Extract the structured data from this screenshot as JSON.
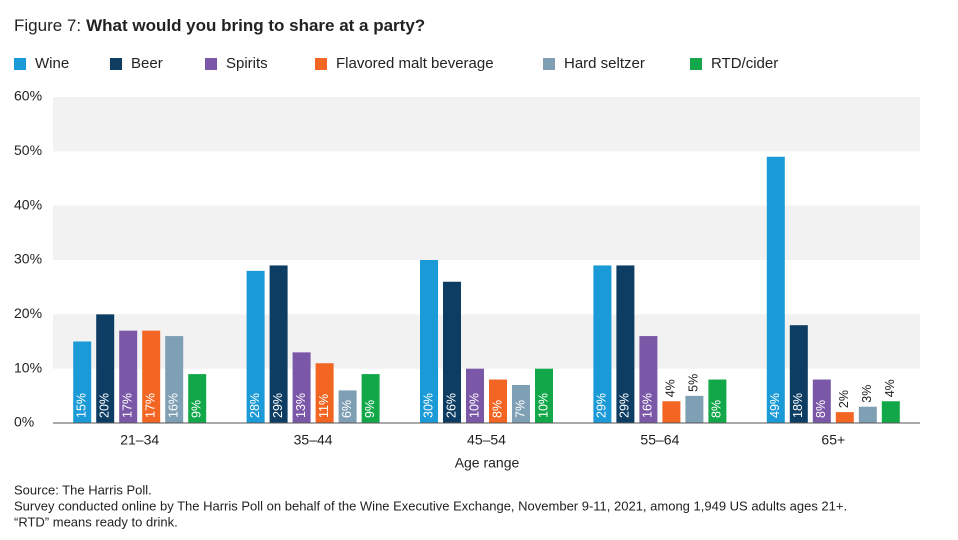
{
  "chart_data": {
    "type": "bar",
    "figure_label": "Figure 7:",
    "title": "What would you bring to share at a party?",
    "x_label": "Age range",
    "categories": [
      "21–34",
      "35–44",
      "45–54",
      "55–64",
      "65+"
    ],
    "series": [
      {
        "name": "Wine",
        "color": "#1a9ad6",
        "values": [
          15,
          28,
          30,
          29,
          49
        ],
        "value_labels": [
          "15%",
          "28%",
          "30%",
          "29%",
          "49%"
        ]
      },
      {
        "name": "Beer",
        "color": "#0e3d63",
        "values": [
          20,
          29,
          26,
          29,
          18
        ],
        "value_labels": [
          "20%",
          "29%",
          "26%",
          "29%",
          "18%"
        ]
      },
      {
        "name": "Spirits",
        "color": "#7b57a8",
        "values": [
          17,
          13,
          10,
          16,
          8
        ],
        "value_labels": [
          "17%",
          "13%",
          "10%",
          "16%",
          "8%"
        ]
      },
      {
        "name": "Flavored malt beverage",
        "color": "#f26522",
        "values": [
          17,
          11,
          8,
          4,
          2
        ],
        "value_labels": [
          "17%",
          "11%",
          "8%",
          "4%",
          "2%"
        ]
      },
      {
        "name": "Hard seltzer",
        "color": "#7f9fb5",
        "values": [
          16,
          6,
          7,
          5,
          3
        ],
        "value_labels": [
          "16%",
          "6%",
          "7%",
          "5%",
          "3%"
        ]
      },
      {
        "name": "RTD/cider",
        "color": "#12a84a",
        "values": [
          9,
          9,
          10,
          8,
          4
        ],
        "value_labels": [
          "9%",
          "9%",
          "10%",
          "8%",
          "4%"
        ]
      }
    ],
    "ylim": [
      0,
      60
    ],
    "yticks": [
      {
        "value": 0,
        "label": "0%"
      },
      {
        "value": 10,
        "label": "10%"
      },
      {
        "value": 20,
        "label": "20%"
      },
      {
        "value": 30,
        "label": "30%"
      },
      {
        "value": 40,
        "label": "40%"
      },
      {
        "value": 50,
        "label": "50%"
      },
      {
        "value": 60,
        "label": "60%"
      }
    ],
    "grid": true,
    "legend": "top",
    "notes": [
      "Source: The Harris Poll.",
      "Survey conducted online by The Harris Poll on behalf of the Wine Executive Exchange, November 9-11, 2021, among 1,949 US adults ages 21+.",
      "“RTD” means ready to drink."
    ]
  }
}
